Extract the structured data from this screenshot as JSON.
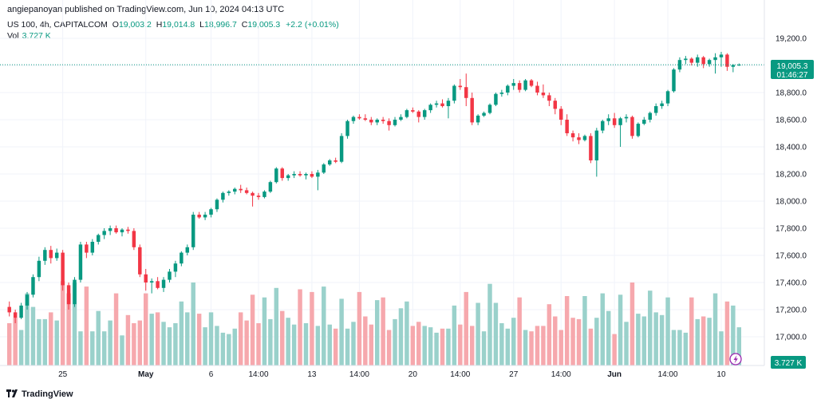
{
  "header": {
    "published_text": "angiepanoyan published on TradingView.com, Jun 10, 2024 04:13 UTC"
  },
  "legend": {
    "symbol": "US 100, 4h, CAPITALCOM",
    "open_label": "O",
    "open": "19,003.2",
    "high_label": "H",
    "high": "19,014.8",
    "low_label": "L",
    "low": "18,996.7",
    "close_label": "C",
    "close": "19,005.3",
    "change": "+2.2 (+0.01%)",
    "vol_label": "Vol",
    "vol_value": "3.727 K"
  },
  "badges": {
    "price": "19,005.3",
    "countdown": "01:46:27",
    "volume": "3.727 K"
  },
  "footer": {
    "brand": "TradingView"
  },
  "colors": {
    "up": "#089981",
    "down": "#F23645",
    "vol_up": "#9AD1CB",
    "vol_down": "#F6A8AD",
    "grid": "#F0F3FA"
  },
  "icons": {
    "alert": "lightning-icon",
    "logo": "tv-logo-icon"
  },
  "chart_data": {
    "type": "candlestick",
    "title": "US 100, 4h, CAPITALCOM",
    "y_ticks": [
      "19,200.0",
      "19,000.0",
      "18,800.0",
      "18,600.0",
      "18,400.0",
      "18,200.0",
      "18,000.0",
      "17,800.0",
      "17,600.0",
      "17,400.0",
      "17,200.0",
      "17,000.0"
    ],
    "y_tick_values": [
      19200,
      19000,
      18800,
      18600,
      18400,
      18200,
      18000,
      17800,
      17600,
      17400,
      17200,
      17000
    ],
    "ylim": [
      16800,
      19250
    ],
    "x_ticks": [
      {
        "label": "25",
        "index": 9
      },
      {
        "label": "May",
        "index": 23
      },
      {
        "label": "6",
        "index": 34
      },
      {
        "label": "14:00",
        "index": 42
      },
      {
        "label": "13",
        "index": 51
      },
      {
        "label": "14:00",
        "index": 59
      },
      {
        "label": "20",
        "index": 68
      },
      {
        "label": "14:00",
        "index": 76
      },
      {
        "label": "27",
        "index": 85
      },
      {
        "label": "14:00",
        "index": 93
      },
      {
        "label": "Jun",
        "index": 102
      },
      {
        "label": "14:00",
        "index": 111
      },
      {
        "label": "10",
        "index": 120
      }
    ],
    "last_price": 19005.3,
    "candles": [
      [
        17220,
        17260,
        17150,
        17180
      ],
      [
        17180,
        17200,
        17100,
        17140
      ],
      [
        17140,
        17250,
        17130,
        17230
      ],
      [
        17230,
        17330,
        17200,
        17310
      ],
      [
        17310,
        17460,
        17290,
        17440
      ],
      [
        17440,
        17590,
        17410,
        17560
      ],
      [
        17560,
        17660,
        17530,
        17640
      ],
      [
        17640,
        17670,
        17540,
        17580
      ],
      [
        17580,
        17650,
        17560,
        17620
      ],
      [
        17620,
        17640,
        17340,
        17380
      ],
      [
        17380,
        17400,
        17200,
        17240
      ],
      [
        17240,
        17440,
        17220,
        17420
      ],
      [
        17420,
        17700,
        17400,
        17680
      ],
      [
        17680,
        17700,
        17580,
        17620
      ],
      [
        17620,
        17720,
        17600,
        17700
      ],
      [
        17700,
        17760,
        17680,
        17750
      ],
      [
        17750,
        17800,
        17720,
        17780
      ],
      [
        17780,
        17820,
        17750,
        17800
      ],
      [
        17800,
        17820,
        17760,
        17770
      ],
      [
        17770,
        17800,
        17740,
        17790
      ],
      [
        17790,
        17810,
        17760,
        17780
      ],
      [
        17780,
        17800,
        17640,
        17660
      ],
      [
        17660,
        17680,
        17440,
        17460
      ],
      [
        17460,
        17500,
        17340,
        17400
      ],
      [
        17400,
        17430,
        17320,
        17410
      ],
      [
        17410,
        17440,
        17350,
        17360
      ],
      [
        17360,
        17440,
        17330,
        17420
      ],
      [
        17420,
        17500,
        17400,
        17480
      ],
      [
        17480,
        17560,
        17440,
        17540
      ],
      [
        17540,
        17630,
        17520,
        17620
      ],
      [
        17620,
        17680,
        17600,
        17660
      ],
      [
        17660,
        17920,
        17640,
        17900
      ],
      [
        17900,
        17920,
        17870,
        17880
      ],
      [
        17880,
        17920,
        17860,
        17900
      ],
      [
        17900,
        17950,
        17880,
        17940
      ],
      [
        17940,
        18020,
        17920,
        18010
      ],
      [
        18010,
        18070,
        17990,
        18060
      ],
      [
        18060,
        18080,
        18040,
        18070
      ],
      [
        18070,
        18100,
        18050,
        18090
      ],
      [
        18090,
        18120,
        18060,
        18080
      ],
      [
        18080,
        18100,
        18050,
        18060
      ],
      [
        18060,
        18070,
        17960,
        18040
      ],
      [
        18040,
        18060,
        18010,
        18030
      ],
      [
        18030,
        18080,
        18020,
        18070
      ],
      [
        18070,
        18150,
        18060,
        18140
      ],
      [
        18140,
        18250,
        18130,
        18240
      ],
      [
        18240,
        18250,
        18150,
        18170
      ],
      [
        18170,
        18200,
        18150,
        18190
      ],
      [
        18190,
        18220,
        18170,
        18200
      ],
      [
        18200,
        18220,
        18180,
        18190
      ],
      [
        18190,
        18210,
        18160,
        18200
      ],
      [
        18200,
        18220,
        18170,
        18180
      ],
      [
        18180,
        18230,
        18080,
        18210
      ],
      [
        18210,
        18280,
        18200,
        18270
      ],
      [
        18270,
        18310,
        18260,
        18300
      ],
      [
        18300,
        18320,
        18280,
        18290
      ],
      [
        18290,
        18500,
        18280,
        18480
      ],
      [
        18480,
        18600,
        18460,
        18590
      ],
      [
        18590,
        18630,
        18570,
        18620
      ],
      [
        18620,
        18640,
        18600,
        18610
      ],
      [
        18610,
        18640,
        18590,
        18600
      ],
      [
        18600,
        18620,
        18560,
        18580
      ],
      [
        18580,
        18610,
        18560,
        18600
      ],
      [
        18600,
        18620,
        18570,
        18590
      ],
      [
        18590,
        18610,
        18520,
        18560
      ],
      [
        18560,
        18620,
        18550,
        18600
      ],
      [
        18600,
        18640,
        18590,
        18620
      ],
      [
        18620,
        18680,
        18610,
        18670
      ],
      [
        18670,
        18690,
        18650,
        18660
      ],
      [
        18660,
        18670,
        18580,
        18620
      ],
      [
        18620,
        18680,
        18600,
        18670
      ],
      [
        18670,
        18720,
        18650,
        18710
      ],
      [
        18710,
        18740,
        18690,
        18720
      ],
      [
        18720,
        18750,
        18690,
        18700
      ],
      [
        18700,
        18760,
        18610,
        18740
      ],
      [
        18740,
        18860,
        18720,
        18850
      ],
      [
        18850,
        18900,
        18820,
        18840
      ],
      [
        18840,
        18940,
        18700,
        18760
      ],
      [
        18760,
        18800,
        18560,
        18580
      ],
      [
        18580,
        18640,
        18560,
        18630
      ],
      [
        18630,
        18660,
        18620,
        18650
      ],
      [
        18650,
        18720,
        18640,
        18710
      ],
      [
        18710,
        18800,
        18700,
        18790
      ],
      [
        18790,
        18820,
        18770,
        18800
      ],
      [
        18800,
        18860,
        18780,
        18850
      ],
      [
        18850,
        18900,
        18820,
        18870
      ],
      [
        18870,
        18890,
        18800,
        18820
      ],
      [
        18820,
        18900,
        18810,
        18890
      ],
      [
        18890,
        18900,
        18840,
        18850
      ],
      [
        18850,
        18880,
        18780,
        18800
      ],
      [
        18800,
        18860,
        18760,
        18780
      ],
      [
        18780,
        18800,
        18700,
        18740
      ],
      [
        18740,
        18760,
        18640,
        18680
      ],
      [
        18680,
        18700,
        18560,
        18600
      ],
      [
        18600,
        18640,
        18480,
        18500
      ],
      [
        18500,
        18520,
        18440,
        18470
      ],
      [
        18470,
        18500,
        18420,
        18450
      ],
      [
        18450,
        18490,
        18440,
        18480
      ],
      [
        18480,
        18500,
        18280,
        18300
      ],
      [
        18300,
        18540,
        18180,
        18520
      ],
      [
        18520,
        18600,
        18500,
        18590
      ],
      [
        18590,
        18640,
        18560,
        18610
      ],
      [
        18610,
        18650,
        18540,
        18560
      ],
      [
        18560,
        18620,
        18400,
        18610
      ],
      [
        18610,
        18640,
        18580,
        18620
      ],
      [
        18620,
        18630,
        18460,
        18480
      ],
      [
        18480,
        18580,
        18470,
        18570
      ],
      [
        18570,
        18620,
        18560,
        18600
      ],
      [
        18600,
        18660,
        18580,
        18650
      ],
      [
        18650,
        18720,
        18630,
        18700
      ],
      [
        18700,
        18740,
        18680,
        18720
      ],
      [
        18720,
        18820,
        18700,
        18810
      ],
      [
        18810,
        18980,
        18800,
        18970
      ],
      [
        18970,
        19060,
        18950,
        19040
      ],
      [
        19040,
        19070,
        19010,
        19050
      ],
      [
        19050,
        19060,
        19000,
        19020
      ],
      [
        19020,
        19080,
        18990,
        19060
      ],
      [
        19060,
        19070,
        18980,
        19010
      ],
      [
        19010,
        19050,
        18990,
        19040
      ],
      [
        19040,
        19090,
        18940,
        19060
      ],
      [
        19060,
        19100,
        18990,
        19080
      ],
      [
        19080,
        19090,
        18960,
        18990
      ],
      [
        18990,
        19010,
        18950,
        19003.2
      ],
      [
        19003.2,
        19014.8,
        18996.7,
        19005.3
      ]
    ],
    "volumes": [
      17100,
      17140,
      17050,
      17320,
      17220,
      17130,
      17130,
      17180,
      17120,
      17410,
      17320,
      17400,
      17040,
      17370,
      17040,
      17190,
      17040,
      17120,
      17320,
      17010,
      17160,
      17100,
      17120,
      17320,
      17170,
      17180,
      17110,
      17070,
      17100,
      17260,
      17180,
      17400,
      17170,
      17070,
      17180,
      17080,
      17030,
      17020,
      17060,
      17180,
      17120,
      17310,
      17100,
      17290,
      17130,
      17360,
      17190,
      17140,
      17090,
      17350,
      17100,
      17330,
      17080,
      17370,
      17090,
      17060,
      17280,
      17060,
      17110,
      17330,
      17150,
      17090,
      17270,
      17290,
      17050,
      17130,
      17210,
      17260,
      17080,
      17110,
      17080,
      17070,
      17030,
      17060,
      17060,
      17230,
      17090,
      17330,
      17080,
      17250,
      17040,
      17390,
      17250,
      17100,
      17060,
      17140,
      17290,
      17050,
      17040,
      17080,
      17080,
      17240,
      17150,
      17050,
      17300,
      17140,
      17130,
      17300,
      17060,
      17140,
      17320,
      17190,
      17020,
      17310,
      17110,
      17400,
      17170,
      17150,
      17340,
      17180,
      17160,
      17290,
      17050,
      17050,
      17030,
      17290,
      17130,
      17150,
      17140,
      17320,
      17040,
      17260,
      17230,
      17070
    ]
  }
}
